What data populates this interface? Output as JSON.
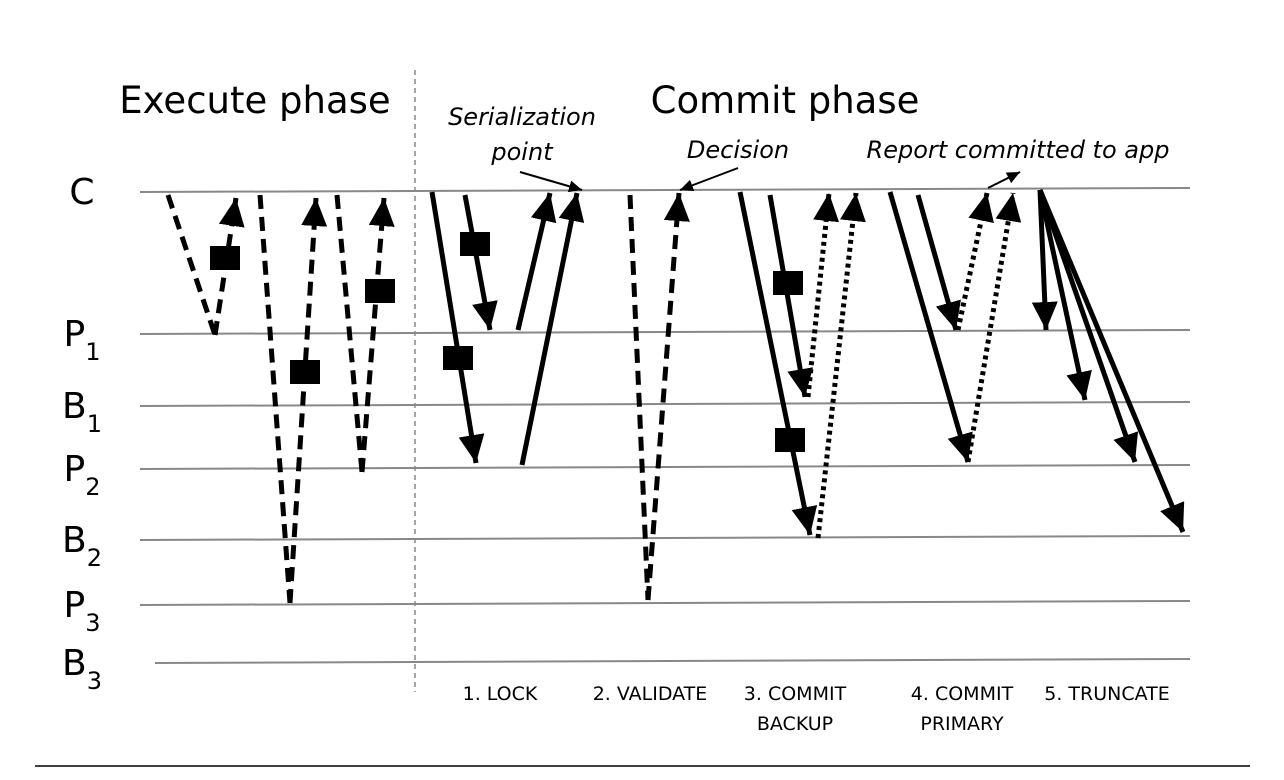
{
  "titles": {
    "execute": "Execute phase",
    "commit": "Commit phase"
  },
  "annotations": {
    "serialization": [
      "Serialization",
      "point"
    ],
    "decision": "Decision",
    "report": "Report committed to app"
  },
  "rows": [
    {
      "label": "C"
    },
    {
      "label": "P",
      "sub": "1"
    },
    {
      "label": "B",
      "sub": "1"
    },
    {
      "label": "P",
      "sub": "2"
    },
    {
      "label": "B",
      "sub": "2"
    },
    {
      "label": "P",
      "sub": "3"
    },
    {
      "label": "B",
      "sub": "3"
    }
  ],
  "steps": [
    {
      "lines": [
        "1. LOCK"
      ]
    },
    {
      "lines": [
        "2. VALIDATE"
      ]
    },
    {
      "lines": [
        "3. COMMIT",
        "BACKUP"
      ]
    },
    {
      "lines": [
        "4. COMMIT",
        "PRIMARY"
      ]
    },
    {
      "lines": [
        "5. TRUNCATE"
      ]
    }
  ]
}
